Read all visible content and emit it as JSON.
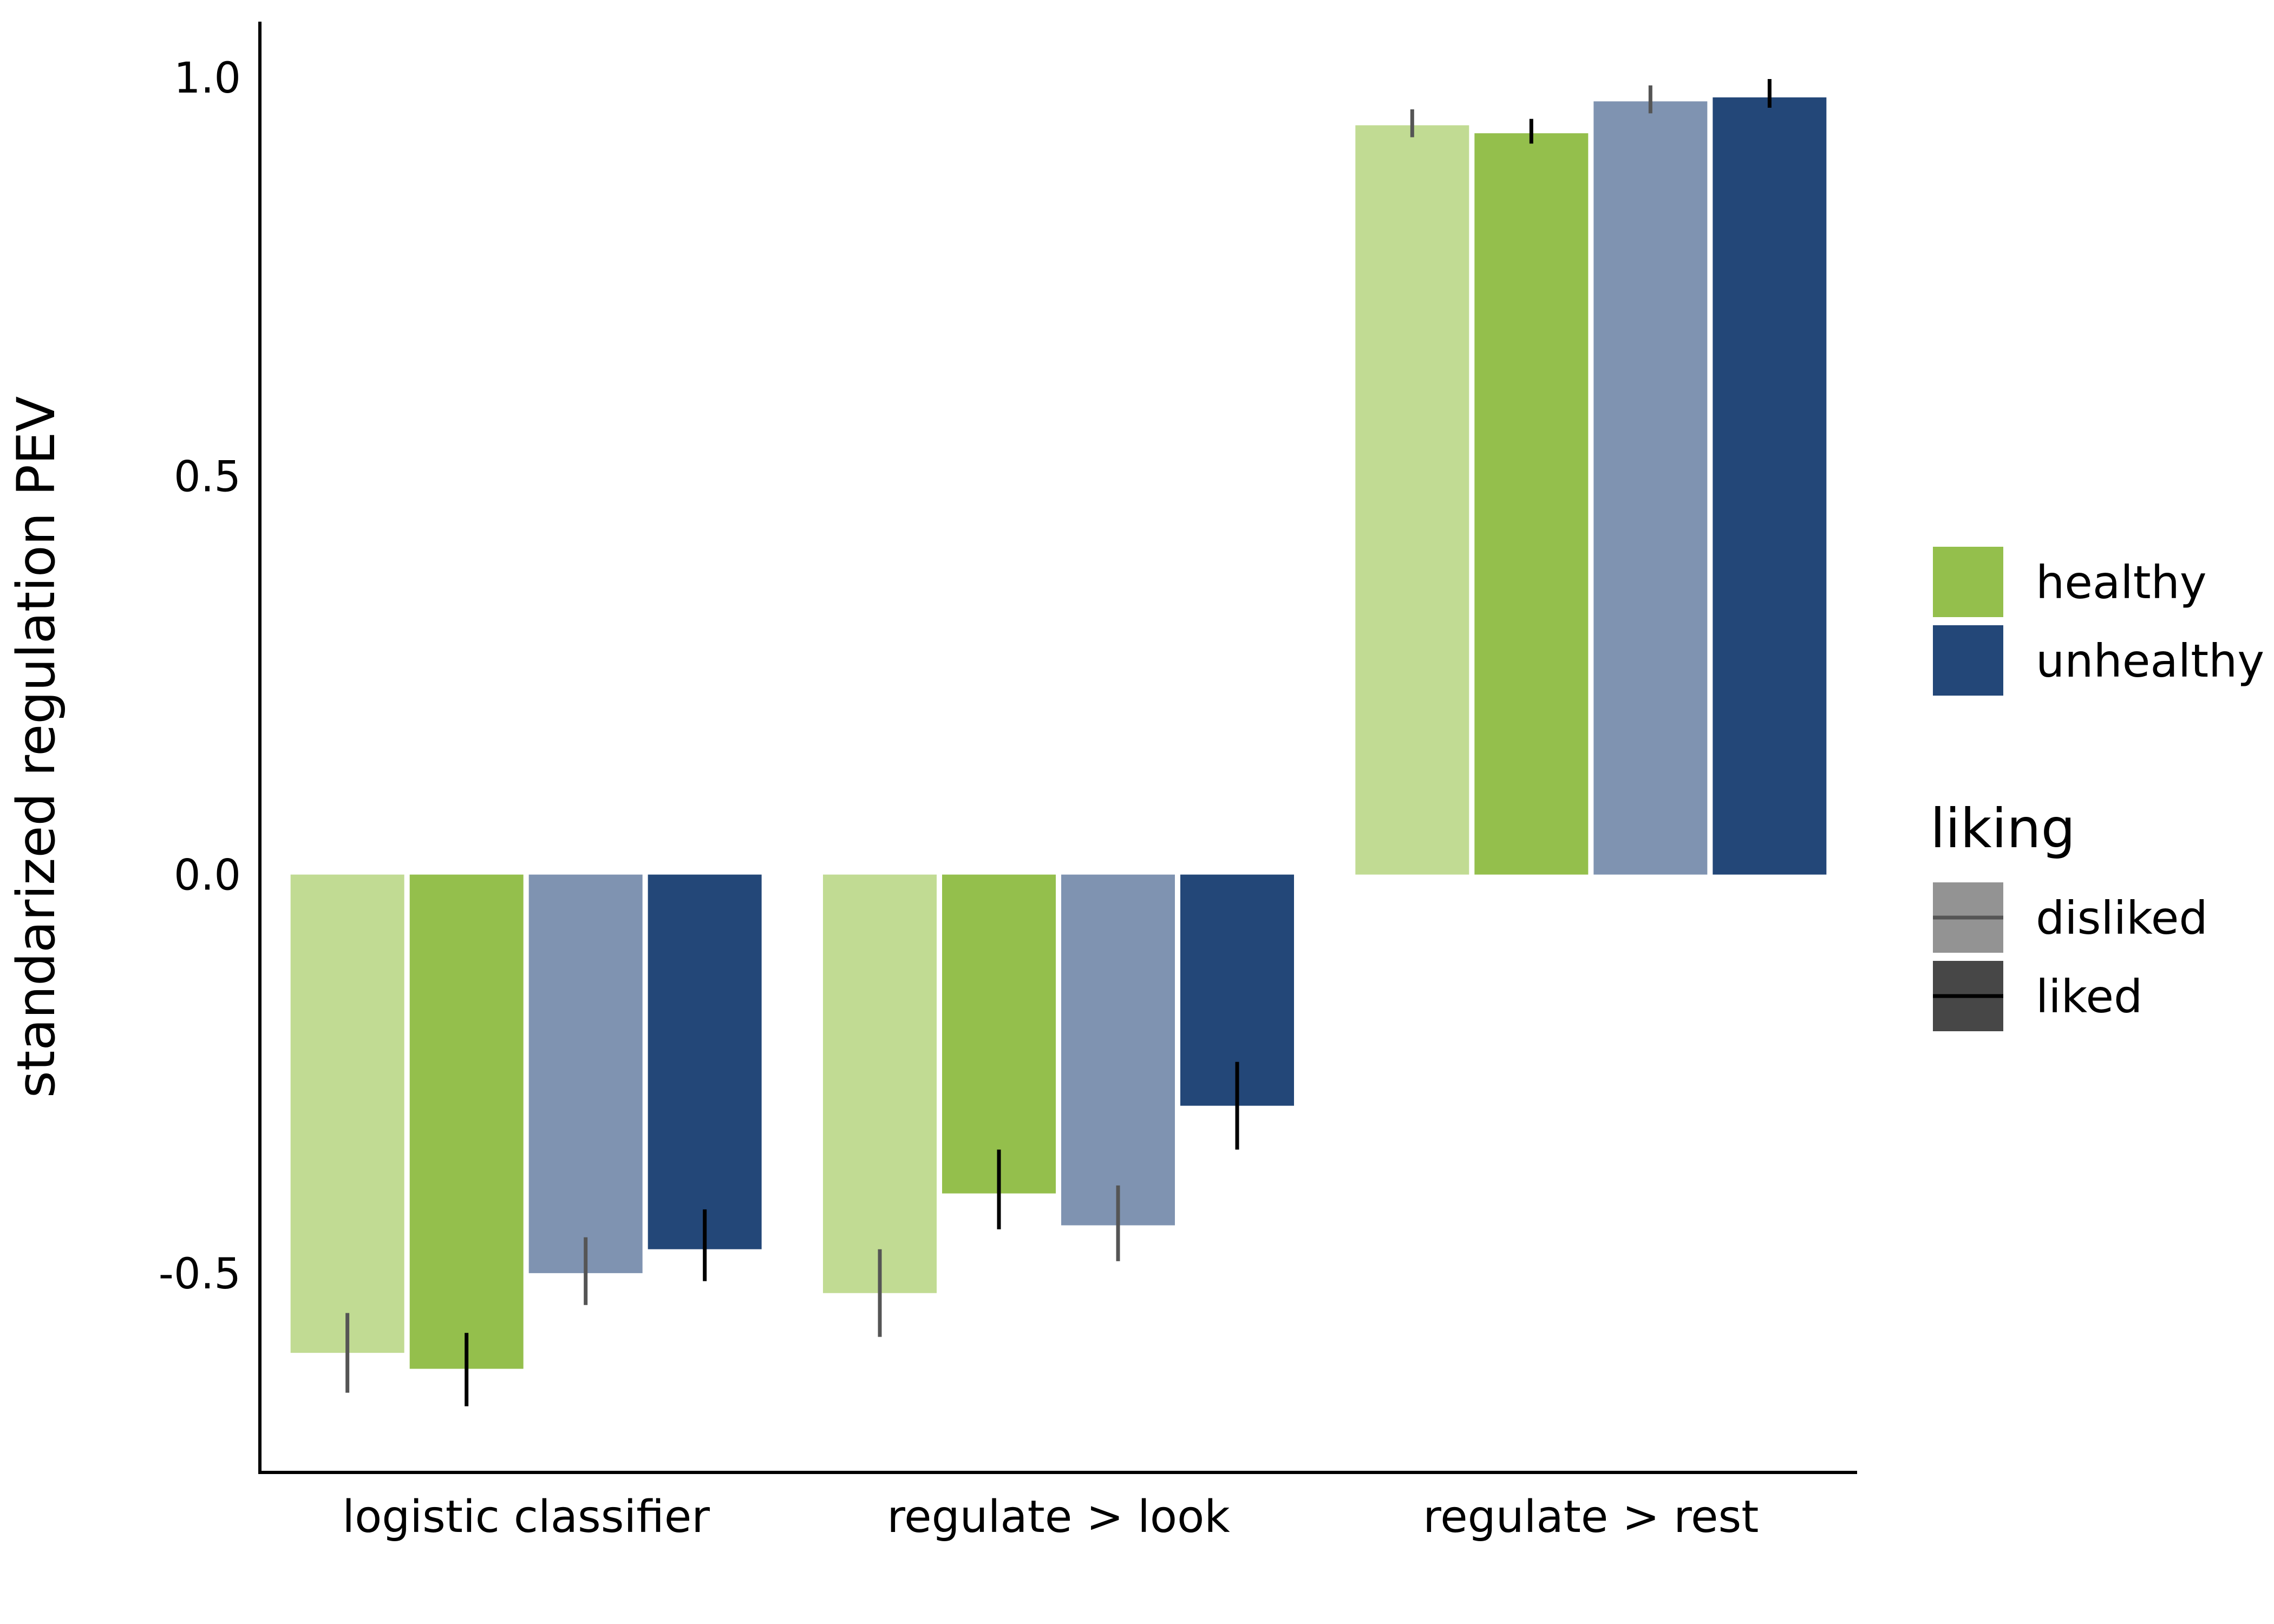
{
  "chart_data": {
    "type": "bar",
    "title": "",
    "xlabel": "",
    "ylabel": "standarized regulation PEV",
    "ylim": [
      -0.75,
      1.07
    ],
    "yticks": [
      -0.5,
      0.0,
      0.5,
      1.0
    ],
    "ytick_labels": [
      "-0.5",
      "0.0",
      "0.5",
      "1.0"
    ],
    "categories": [
      "logistic classifier",
      "regulate > look",
      "regulate > rest"
    ],
    "grid": false,
    "legend_placement": "right",
    "series": [
      {
        "food": "healthy",
        "liking": "disliked",
        "color": "#c1db93",
        "error_color": "#555555",
        "values": [
          -0.6,
          -0.525,
          0.94
        ],
        "error_low": [
          -0.65,
          -0.58,
          0.925
        ],
        "error_high": [
          -0.55,
          -0.47,
          0.96
        ]
      },
      {
        "food": "healthy",
        "liking": "liked",
        "color": "#94bf4c",
        "error_color": "#000000",
        "values": [
          -0.62,
          -0.4,
          0.93
        ],
        "error_low": [
          -0.667,
          -0.445,
          0.917
        ],
        "error_high": [
          -0.575,
          -0.345,
          0.948
        ]
      },
      {
        "food": "unhealthy",
        "liking": "disliked",
        "color": "#7f93b1",
        "error_color": "#555555",
        "values": [
          -0.5,
          -0.44,
          0.97
        ],
        "error_low": [
          -0.54,
          -0.485,
          0.955
        ],
        "error_high": [
          -0.455,
          -0.39,
          0.99
        ]
      },
      {
        "food": "unhealthy",
        "liking": "liked",
        "color": "#234778",
        "error_color": "#000000",
        "values": [
          -0.47,
          -0.29,
          0.975
        ],
        "error_low": [
          -0.51,
          -0.345,
          0.962
        ],
        "error_high": [
          -0.42,
          -0.235,
          0.998
        ]
      }
    ],
    "legend_food": [
      {
        "label": "healthy",
        "color": "#94bf4c"
      },
      {
        "label": "unhealthy",
        "color": "#234778"
      }
    ],
    "legend_liking": {
      "title": "liking",
      "items": [
        {
          "label": "disliked",
          "box_color": "#939393",
          "line_color": "#555555"
        },
        {
          "label": "liked",
          "box_color": "#474747",
          "line_color": "#000000"
        }
      ]
    }
  }
}
